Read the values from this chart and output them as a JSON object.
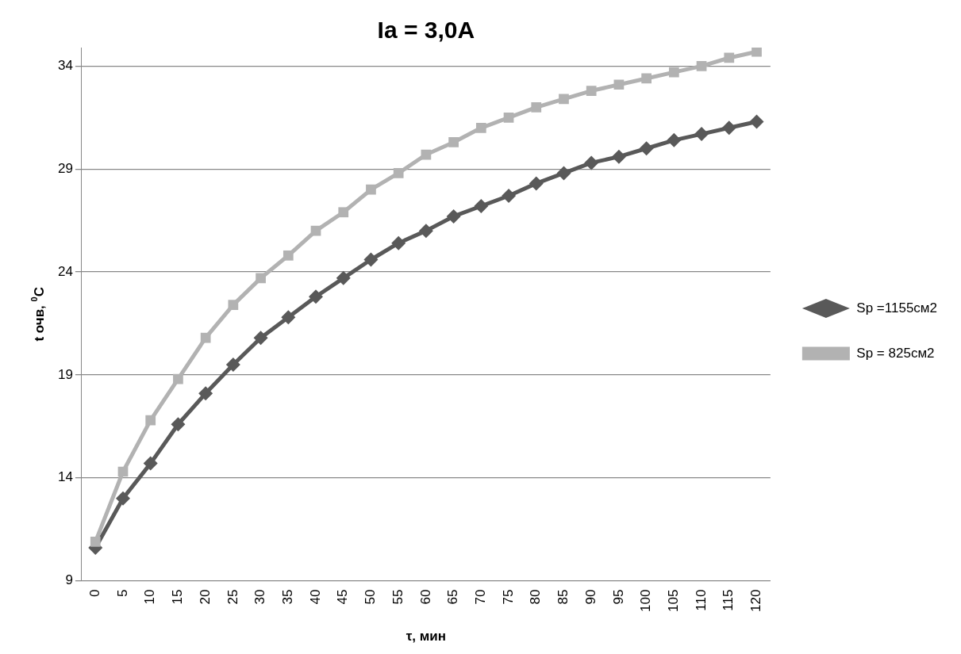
{
  "chart_data": {
    "type": "line",
    "title": "Ia = 3,0A",
    "xlabel": "τ, мин",
    "ylabel": "t очв, $^{0}$C",
    "categories": [
      "0",
      "5",
      "10",
      "15",
      "20",
      "25",
      "30",
      "35",
      "40",
      "45",
      "50",
      "55",
      "60",
      "65",
      "70",
      "75",
      "80",
      "85",
      "90",
      "95",
      "100",
      "105",
      "110",
      "115",
      "120"
    ],
    "series": [
      {
        "name": "Sp =1155см2",
        "color": "#595959",
        "marker": "diamond",
        "values": [
          10.6,
          13.0,
          14.7,
          16.6,
          18.1,
          19.5,
          20.8,
          21.8,
          22.8,
          23.7,
          24.6,
          25.4,
          26.0,
          26.7,
          27.2,
          27.7,
          28.3,
          28.8,
          29.3,
          29.6,
          30.0,
          30.4,
          30.7,
          31.0,
          31.3
        ]
      },
      {
        "name": "Sp = 825см2",
        "color": "#b2b2b2",
        "marker": "square",
        "values": [
          10.9,
          14.3,
          16.8,
          18.8,
          20.8,
          22.4,
          23.7,
          24.8,
          26.0,
          26.9,
          28.0,
          28.8,
          29.7,
          30.3,
          31.0,
          31.5,
          32.0,
          32.4,
          32.8,
          33.1,
          33.4,
          33.7,
          34.0,
          34.4,
          34.7
        ]
      }
    ],
    "ylim": [
      9,
      34.9
    ],
    "yticks": [
      9,
      14,
      19,
      24,
      29,
      34
    ],
    "grid": "y",
    "legend": "right",
    "line_style": "solid"
  }
}
